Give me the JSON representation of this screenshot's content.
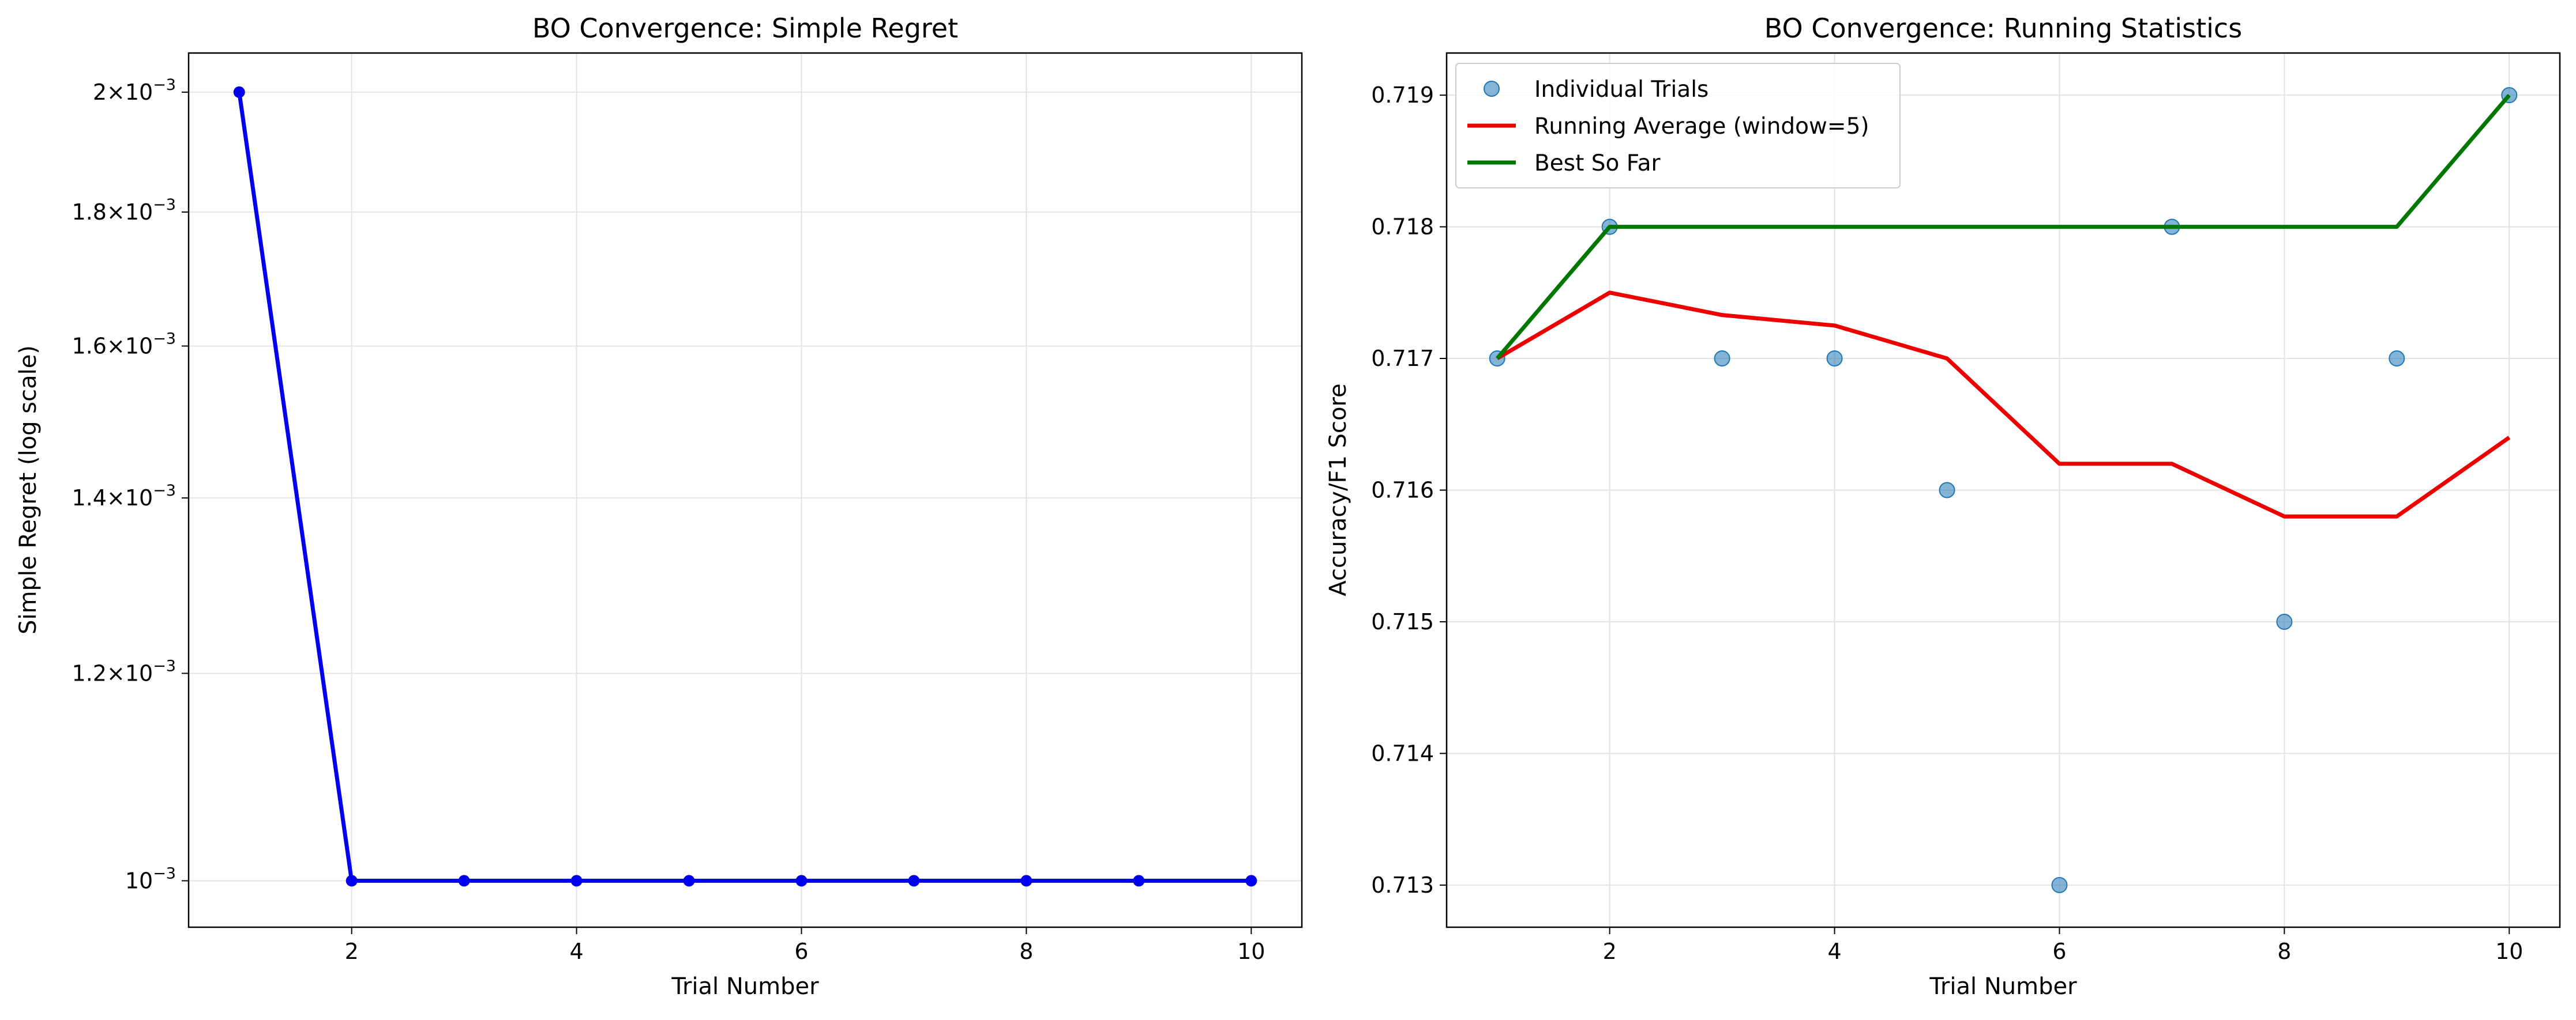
{
  "figure": {
    "panels": [
      {
        "title": "BO Convergence: Simple Regret",
        "xlabel": "Trial Number",
        "ylabel": "Simple Regret (log scale)"
      },
      {
        "title": "BO Convergence: Running Statistics",
        "xlabel": "Trial Number",
        "ylabel": "Accuracy/F1 Score"
      }
    ]
  },
  "chart_data": [
    {
      "type": "line",
      "title": "BO Convergence: Simple Regret",
      "xlabel": "Trial Number",
      "ylabel": "Simple Regret (log scale)",
      "yscale": "log",
      "xlim": [
        0.55,
        10.45
      ],
      "ylim": [
        0.00096,
        0.00207
      ],
      "xticks": [
        2,
        4,
        6,
        8,
        10
      ],
      "yticks": [
        {
          "value": 0.001,
          "mantissa": "",
          "exp": "−3"
        },
        {
          "value": 0.0012,
          "mantissa": "1.2",
          "exp": "−3"
        },
        {
          "value": 0.0014,
          "mantissa": "1.4",
          "exp": "−3"
        },
        {
          "value": 0.0016,
          "mantissa": "1.6",
          "exp": "−3"
        },
        {
          "value": 0.0018,
          "mantissa": "1.8",
          "exp": "−3"
        },
        {
          "value": 0.002,
          "mantissa": "2",
          "exp": "−3"
        }
      ],
      "grid": true,
      "x": [
        1,
        2,
        3,
        4,
        5,
        6,
        7,
        8,
        9,
        10
      ],
      "series": [
        {
          "values": [
            0.002,
            0.001,
            0.001,
            0.001,
            0.001,
            0.001,
            0.001,
            0.001,
            0.001,
            0.001
          ],
          "color": "#0000ee",
          "marker": "circle"
        }
      ]
    },
    {
      "type": "line",
      "title": "BO Convergence: Running Statistics",
      "xlabel": "Trial Number",
      "ylabel": "Accuracy/F1 Score",
      "xlim": [
        0.55,
        10.45
      ],
      "ylim": [
        0.71268,
        0.71932
      ],
      "xticks": [
        2,
        4,
        6,
        8,
        10
      ],
      "yticks": [
        0.713,
        0.714,
        0.715,
        0.716,
        0.717,
        0.718,
        0.719
      ],
      "grid": true,
      "legend_position": "top-left",
      "x": [
        1,
        2,
        3,
        4,
        5,
        6,
        7,
        8,
        9,
        10
      ],
      "series": [
        {
          "name": "Individual Trials",
          "kind": "scatter",
          "color": "#1f77b4",
          "values": [
            0.717,
            0.718,
            0.717,
            0.717,
            0.716,
            0.713,
            0.718,
            0.715,
            0.717,
            0.719
          ]
        },
        {
          "name": "Running Average (window=5)",
          "kind": "line",
          "color": "#ee0000",
          "values": [
            0.717,
            0.7175,
            0.71733,
            0.71725,
            0.717,
            0.7162,
            0.7162,
            0.7158,
            0.7158,
            0.7164
          ]
        },
        {
          "name": "Best So Far",
          "kind": "line",
          "color": "#007700",
          "values": [
            0.717,
            0.718,
            0.718,
            0.718,
            0.718,
            0.718,
            0.718,
            0.718,
            0.718,
            0.719
          ]
        }
      ]
    }
  ]
}
